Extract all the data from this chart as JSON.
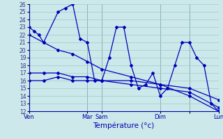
{
  "title": "Température (°c)",
  "bg_color": "#cce8ea",
  "grid_color": "#99cccc",
  "line_color": "#0000bb",
  "ylim": [
    12,
    26
  ],
  "yticks": [
    12,
    13,
    14,
    15,
    16,
    17,
    18,
    19,
    20,
    21,
    22,
    23,
    24,
    25,
    26
  ],
  "xlim": [
    0,
    156
  ],
  "x_tick_positions": [
    0,
    48,
    60,
    108,
    132,
    156
  ],
  "x_tick_labels": [
    "Ven",
    "Mar",
    "Sam",
    "Dim",
    "",
    "Lun"
  ],
  "vlines": [
    0,
    48,
    60,
    108,
    132,
    156
  ],
  "series1_x": [
    0,
    4,
    8,
    12,
    24,
    30,
    36,
    42,
    48,
    54,
    60,
    66,
    72,
    78,
    84,
    90,
    96,
    102,
    108,
    114,
    120,
    126,
    132,
    138,
    144,
    150,
    156
  ],
  "series1_y": [
    23,
    22.5,
    22,
    21,
    25,
    25.5,
    26,
    21.5,
    21,
    16,
    16,
    19,
    23,
    23,
    18,
    15,
    15.5,
    17,
    14,
    15,
    18,
    21,
    21,
    19,
    18,
    13,
    12
  ],
  "series2_x": [
    0,
    12,
    24,
    36,
    48,
    60,
    84,
    108,
    132,
    156
  ],
  "series2_y": [
    22,
    21,
    20,
    19.5,
    18.5,
    17.5,
    16.5,
    15.5,
    14,
    12
  ],
  "series3_x": [
    0,
    12,
    24,
    36,
    48,
    60,
    84,
    108,
    132,
    156
  ],
  "series3_y": [
    17,
    17,
    17,
    16.5,
    16.5,
    16,
    16,
    15.5,
    15,
    13.5
  ],
  "series4_x": [
    0,
    12,
    24,
    36,
    48,
    60,
    84,
    108,
    132,
    156
  ],
  "series4_y": [
    16,
    16,
    16.5,
    16,
    16,
    16,
    15.5,
    15,
    14.5,
    12.5
  ]
}
